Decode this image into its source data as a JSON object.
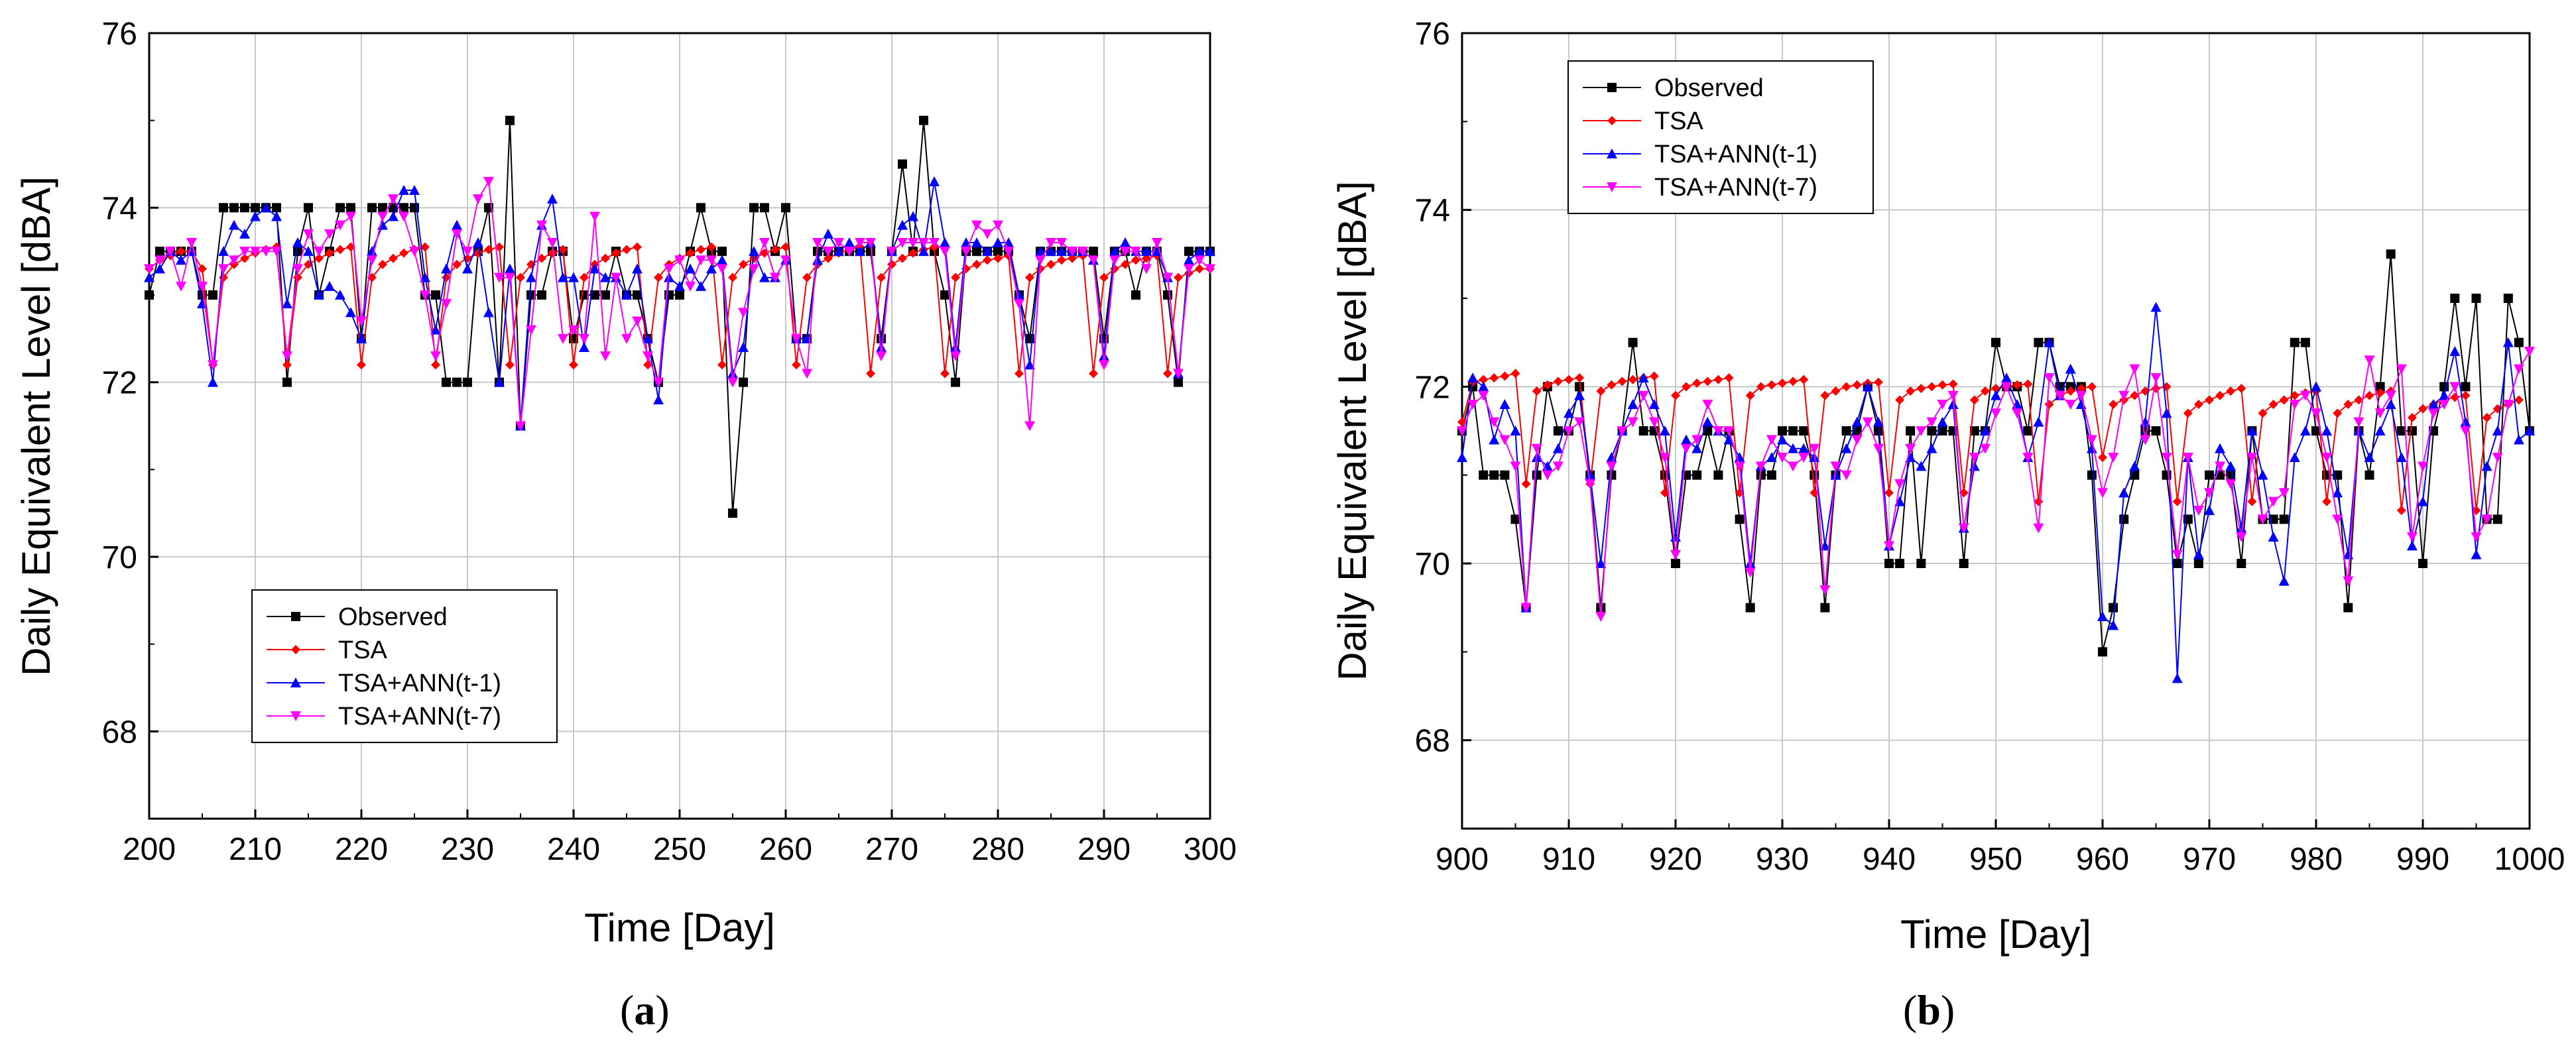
{
  "colors": {
    "observed": "#000000",
    "tsa": "#ff0000",
    "ann1": "#0000ff",
    "ann7": "#ff00ff"
  },
  "chart_data": [
    {
      "type": "line",
      "panel": "a",
      "panel_label_left": "(",
      "panel_label_mid": "a",
      "panel_label_right": ")",
      "xlabel": "Time [Day]",
      "ylabel": "Daily Equivalent Level [dBA]",
      "xlim": [
        200,
        300
      ],
      "ylim": [
        67,
        76
      ],
      "x_ticks": [
        200,
        210,
        220,
        230,
        240,
        250,
        260,
        270,
        280,
        290,
        300
      ],
      "y_ticks": [
        68,
        70,
        72,
        74,
        76
      ],
      "grid": true,
      "legend_position": "bottom-left",
      "x_start": 200,
      "series": [
        {
          "name": "Observed",
          "color_key": "observed",
          "marker": "square",
          "values": [
            73,
            73.5,
            73.5,
            73.5,
            73.5,
            73,
            73,
            74,
            74,
            74,
            74,
            74,
            74,
            72,
            73.5,
            74,
            73,
            73.5,
            74,
            74,
            72.5,
            74,
            74,
            74,
            74,
            74,
            73,
            73,
            72,
            72,
            72,
            73.5,
            74,
            72,
            75,
            71.5,
            73,
            73,
            73.5,
            73.5,
            72.5,
            73,
            73,
            73,
            73.5,
            73,
            73,
            72.5,
            72,
            73,
            73,
            73.5,
            74,
            73.5,
            73.5,
            70.5,
            72,
            74,
            74,
            73.5,
            74,
            72.5,
            72.5,
            73.5,
            73.5,
            73.5,
            73.5,
            73.5,
            73.5,
            72.5,
            73.5,
            74.5,
            73.5,
            75,
            73.5,
            73,
            72,
            73.5,
            73.5,
            73.5,
            73.5,
            73.5,
            73,
            72.5,
            73.5,
            73.5,
            73.5,
            73.5,
            73.5,
            73.5,
            72.5,
            73.5,
            73.5,
            73,
            73.5,
            73.5,
            73,
            72,
            73.5,
            73.5,
            73.5
          ]
        },
        {
          "name": "TSA",
          "color_key": "tsa",
          "marker": "diamond",
          "values": [
            73.3,
            73.4,
            73.45,
            73.5,
            73.5,
            73.3,
            72.2,
            73.2,
            73.35,
            73.42,
            73.48,
            73.52,
            73.55,
            72.2,
            73.2,
            73.35,
            73.42,
            73.48,
            73.52,
            73.55,
            72.2,
            73.2,
            73.35,
            73.42,
            73.48,
            73.52,
            73.55,
            72.2,
            73.2,
            73.35,
            73.42,
            73.48,
            73.52,
            73.55,
            72.2,
            73.2,
            73.35,
            73.42,
            73.48,
            73.52,
            72.2,
            73.2,
            73.35,
            73.42,
            73.48,
            73.52,
            73.55,
            72.2,
            73.2,
            73.35,
            73.42,
            73.48,
            73.52,
            73.55,
            72.2,
            73.2,
            73.35,
            73.42,
            73.48,
            73.52,
            73.55,
            72.2,
            73.2,
            73.35,
            73.42,
            73.48,
            73.52,
            73.55,
            72.1,
            73.2,
            73.35,
            73.42,
            73.48,
            73.52,
            73.55,
            72.1,
            73.2,
            73.3,
            73.35,
            73.4,
            73.42,
            73.45,
            72.1,
            73.2,
            73.3,
            73.35,
            73.4,
            73.42,
            73.45,
            72.1,
            73.2,
            73.3,
            73.35,
            73.4,
            73.42,
            73.45,
            72.1,
            73.2,
            73.25,
            73.3,
            73.3
          ]
        },
        {
          "name": "TSA+ANN(t-1)",
          "color_key": "ann1",
          "marker": "triangle-up",
          "values": [
            73.2,
            73.3,
            73.5,
            73.4,
            73.5,
            72.9,
            72,
            73.5,
            73.8,
            73.7,
            73.9,
            74,
            73.9,
            72.9,
            73.6,
            73.5,
            73,
            73.1,
            73,
            72.8,
            72.5,
            73.5,
            73.8,
            73.9,
            74.2,
            74.2,
            73.2,
            72.6,
            73.3,
            73.8,
            73.3,
            73.6,
            72.8,
            72,
            73.3,
            71.5,
            73.2,
            73.8,
            74.1,
            73.2,
            73.2,
            72.4,
            73.3,
            73.2,
            73.2,
            73,
            73.3,
            72.5,
            71.8,
            73.2,
            73.1,
            73.3,
            73.1,
            73.3,
            73.4,
            72.1,
            72.4,
            73.5,
            73.2,
            73.2,
            73.4,
            72.5,
            72.5,
            73.4,
            73.7,
            73.5,
            73.6,
            73.5,
            73.6,
            72.4,
            73.5,
            73.8,
            73.9,
            73.5,
            74.3,
            73.6,
            72.4,
            73.6,
            73.6,
            73.5,
            73.6,
            73.6,
            73,
            72.2,
            73.5,
            73.5,
            73.5,
            73.5,
            73.5,
            73.4,
            72.3,
            73.5,
            73.6,
            73.5,
            73.5,
            73.5,
            73.2,
            72.1,
            73.4,
            73.5,
            73.5
          ]
        },
        {
          "name": "TSA+ANN(t-7)",
          "color_key": "ann7",
          "marker": "triangle-down",
          "values": [
            73.3,
            73.4,
            73.5,
            73.1,
            73.6,
            73.1,
            72.2,
            73.3,
            73.4,
            73.5,
            73.5,
            73.5,
            73.5,
            72.3,
            73.3,
            73.7,
            73.5,
            73.7,
            73.8,
            73.9,
            72.7,
            73.4,
            73.9,
            74.1,
            73.9,
            73.5,
            73,
            72.3,
            72.9,
            73.7,
            73.5,
            74.1,
            74.3,
            73.2,
            73.2,
            71.5,
            72.6,
            73.8,
            73.6,
            72.5,
            72.6,
            72.5,
            73.9,
            72.3,
            73.2,
            72.5,
            72.7,
            72.3,
            72,
            73.3,
            73.4,
            73.1,
            73.4,
            73.4,
            73.3,
            72,
            72.8,
            73.3,
            73.6,
            73.2,
            73.4,
            72.5,
            72.1,
            73.6,
            73.5,
            73.6,
            73.5,
            73.6,
            73.6,
            72.3,
            73.5,
            73.6,
            73.6,
            73.6,
            73.6,
            73.5,
            72.3,
            73.5,
            73.8,
            73.7,
            73.8,
            73.5,
            72.9,
            71.5,
            73.4,
            73.6,
            73.6,
            73.5,
            73.5,
            73.4,
            72.2,
            73.4,
            73.5,
            73.5,
            73.3,
            73.6,
            73.2,
            72.1,
            73.3,
            73.4,
            73.3
          ]
        }
      ],
      "legend": [
        "Observed",
        "TSA",
        "TSA+ANN(t-1)",
        "TSA+ANN(t-7)"
      ]
    },
    {
      "type": "line",
      "panel": "b",
      "panel_label_left": "(",
      "panel_label_mid": "b",
      "panel_label_right": ")",
      "xlabel": "Time [Day]",
      "ylabel": "Daily Equivalent Level [dBA]",
      "xlim": [
        900,
        1000
      ],
      "ylim": [
        67,
        76
      ],
      "x_ticks": [
        900,
        910,
        920,
        930,
        940,
        950,
        960,
        970,
        980,
        990,
        1000
      ],
      "y_ticks": [
        68,
        70,
        72,
        74,
        76
      ],
      "grid": true,
      "legend_position": "top-left",
      "x_start": 900,
      "series": [
        {
          "name": "Observed",
          "color_key": "observed",
          "marker": "square",
          "values": [
            71.5,
            72,
            71,
            71,
            71,
            70.5,
            69.5,
            71,
            72,
            71.5,
            71.5,
            72,
            71,
            69.5,
            71,
            71.5,
            72.5,
            71.5,
            71.5,
            71,
            70,
            71,
            71,
            71.5,
            71,
            71.5,
            70.5,
            69.5,
            71,
            71,
            71.5,
            71.5,
            71.5,
            71,
            69.5,
            71,
            71.5,
            71.5,
            72,
            71.5,
            70,
            70,
            71.5,
            70,
            71.5,
            71.5,
            71.5,
            70,
            71.5,
            71.5,
            72.5,
            72,
            72,
            71.5,
            72.5,
            72.5,
            72,
            72,
            72,
            71,
            69,
            69.5,
            70.5,
            71,
            71.5,
            71.5,
            71,
            70,
            70.5,
            70,
            71,
            71,
            71,
            70,
            71.5,
            70.5,
            70.5,
            70.5,
            72.5,
            72.5,
            71.5,
            71,
            71,
            69.5,
            71.5,
            71,
            72,
            73.5,
            71.5,
            71.5,
            70,
            71.5,
            72,
            73,
            72,
            73,
            70.5,
            70.5,
            73,
            72.5,
            71.5
          ]
        },
        {
          "name": "TSA",
          "color_key": "tsa",
          "marker": "diamond",
          "values": [
            71.6,
            72.05,
            72.08,
            72.1,
            72.12,
            72.15,
            70.9,
            71.95,
            72.02,
            72.06,
            72.08,
            72.1,
            70.9,
            71.95,
            72.02,
            72.06,
            72.08,
            72.1,
            72.12,
            70.8,
            71.9,
            72,
            72.04,
            72.06,
            72.08,
            72.1,
            70.8,
            71.9,
            72,
            72.02,
            72.04,
            72.06,
            72.08,
            70.8,
            71.9,
            71.95,
            72,
            72.02,
            72.04,
            72.05,
            70.8,
            71.85,
            71.95,
            71.98,
            72,
            72.02,
            72.03,
            70.8,
            71.85,
            71.95,
            71.98,
            72,
            72.02,
            72.03,
            70.7,
            71.8,
            71.9,
            71.95,
            71.98,
            72,
            71.2,
            71.8,
            71.85,
            71.9,
            71.95,
            71.98,
            72,
            70.7,
            71.7,
            71.8,
            71.85,
            71.9,
            71.95,
            71.98,
            70.7,
            71.7,
            71.8,
            71.85,
            71.9,
            71.93,
            71.95,
            70.7,
            71.7,
            71.8,
            71.85,
            71.9,
            71.93,
            71.95,
            70.6,
            71.65,
            71.75,
            71.8,
            71.85,
            71.88,
            71.9,
            70.6,
            71.65,
            71.75,
            71.8,
            71.85
          ]
        },
        {
          "name": "TSA+ANN(t-1)",
          "color_key": "ann1",
          "marker": "triangle-up",
          "values": [
            71.2,
            72.1,
            72,
            71.4,
            71.8,
            71.5,
            69.5,
            71.2,
            71.1,
            71.3,
            71.7,
            71.9,
            71,
            70,
            71.2,
            71.5,
            71.8,
            72.1,
            71.8,
            71.5,
            70.3,
            71.4,
            71.3,
            71.6,
            71.5,
            71.4,
            71.2,
            70,
            71.1,
            71.2,
            71.4,
            71.3,
            71.3,
            71.2,
            70.2,
            71,
            71.3,
            71.6,
            72,
            71.6,
            70.2,
            70.7,
            71.2,
            71.1,
            71.3,
            71.6,
            71.8,
            70.4,
            71.1,
            71.5,
            71.9,
            72.1,
            71.8,
            71.2,
            71.6,
            72.5,
            71.9,
            72.2,
            71.8,
            71.3,
            69.4,
            69.3,
            70.8,
            71.1,
            71.6,
            72.9,
            71.7,
            68.7,
            71.2,
            70.1,
            70.6,
            71.3,
            71.1,
            70.4,
            71.5,
            71,
            70.3,
            69.8,
            71.2,
            71.5,
            72,
            71.5,
            70.8,
            70.1,
            71.5,
            71.2,
            71.5,
            71.8,
            71.2,
            70.2,
            70.7,
            71.8,
            71.9,
            72.4,
            71.6,
            70.1,
            71.1,
            71.5,
            72.5,
            71.4,
            71.5
          ]
        },
        {
          "name": "TSA+ANN(t-7)",
          "color_key": "ann7",
          "marker": "triangle-down",
          "values": [
            71.5,
            71.8,
            71.9,
            71.6,
            71.4,
            71.1,
            69.5,
            71.3,
            71,
            71.1,
            71.5,
            71.6,
            70.9,
            69.4,
            71.1,
            71.5,
            71.6,
            71.9,
            71.6,
            71.2,
            70.1,
            71.3,
            71.4,
            71.8,
            71.5,
            71.5,
            71.1,
            69.9,
            71.1,
            71.4,
            71.2,
            71.1,
            71.2,
            71.3,
            69.7,
            71.1,
            71,
            71.4,
            71.6,
            71.3,
            70.2,
            70.9,
            71.3,
            71.5,
            71.6,
            71.8,
            71.9,
            70.4,
            71.2,
            71.3,
            71.7,
            72,
            71.7,
            71.2,
            70.4,
            72.1,
            71.9,
            71.8,
            71.9,
            71.4,
            70.8,
            71.2,
            71.9,
            72.2,
            71.4,
            72.1,
            71.2,
            70.1,
            71.2,
            70.6,
            70.8,
            71.1,
            70.9,
            70.3,
            71.2,
            70.5,
            70.7,
            70.8,
            71.8,
            71.9,
            71.7,
            71.2,
            70.5,
            69.8,
            71.6,
            72.3,
            71.7,
            71.9,
            72.2,
            70.3,
            71.1,
            71.7,
            71.8,
            72,
            71.5,
            70.3,
            70.5,
            71.2,
            71.8,
            72.2,
            72.4
          ]
        }
      ],
      "legend": [
        "Observed",
        "TSA",
        "TSA+ANN(t-1)",
        "TSA+ANN(t-7)"
      ]
    }
  ]
}
